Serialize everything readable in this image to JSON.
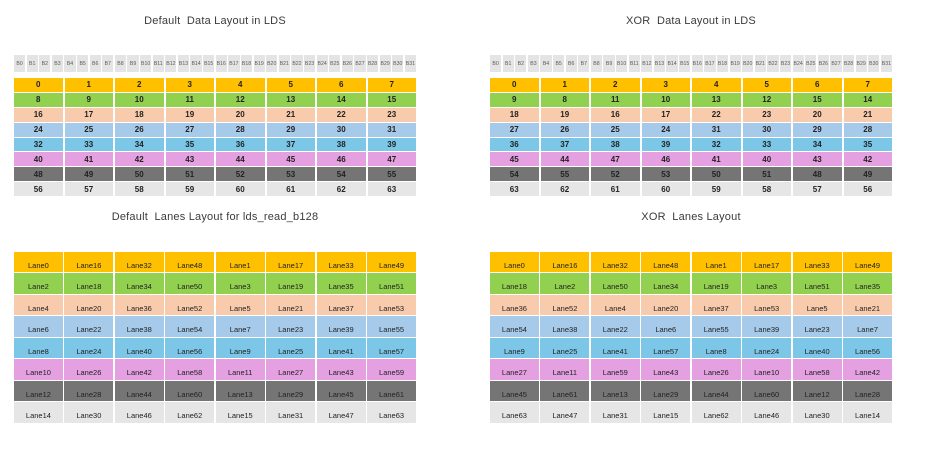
{
  "palette": {
    "row_colors": [
      "#FFC000",
      "#92D050",
      "#F8CBAD",
      "#A6CAEA",
      "#7CC7E8",
      "#E4A0E0",
      "#757575",
      "#E7E6E6"
    ],
    "bank_cell_bg": "#E4E4E4",
    "bank_text": "#5A5A5A",
    "cell_text": "#222222",
    "title_text": "#3B3B3B",
    "background": "#FFFFFF"
  },
  "banks": [
    "B0",
    "B1",
    "B2",
    "B3",
    "B4",
    "B5",
    "B6",
    "B7",
    "B8",
    "B9",
    "B10",
    "B11",
    "B12",
    "B13",
    "B14",
    "B15",
    "B16",
    "B17",
    "B18",
    "B19",
    "B20",
    "B21",
    "B22",
    "B23",
    "B24",
    "B25",
    "B26",
    "B27",
    "B28",
    "B29",
    "B30",
    "B31"
  ],
  "panels": [
    {
      "id": "default-data",
      "title": "Default  Data Layout in LDS",
      "cell_kind": "data",
      "has_banks": true,
      "rows": [
        [
          0,
          1,
          2,
          3,
          4,
          5,
          6,
          7
        ],
        [
          8,
          9,
          10,
          11,
          12,
          13,
          14,
          15
        ],
        [
          16,
          17,
          18,
          19,
          20,
          21,
          22,
          23
        ],
        [
          24,
          25,
          26,
          27,
          28,
          29,
          30,
          31
        ],
        [
          32,
          33,
          34,
          35,
          36,
          37,
          38,
          39
        ],
        [
          40,
          41,
          42,
          43,
          44,
          45,
          46,
          47
        ],
        [
          48,
          49,
          50,
          51,
          52,
          53,
          54,
          55
        ],
        [
          56,
          57,
          58,
          59,
          60,
          61,
          62,
          63
        ]
      ]
    },
    {
      "id": "xor-data",
      "title": "XOR  Data Layout in LDS",
      "cell_kind": "data",
      "has_banks": true,
      "rows": [
        [
          0,
          1,
          2,
          3,
          4,
          5,
          6,
          7
        ],
        [
          9,
          8,
          11,
          10,
          13,
          12,
          15,
          14
        ],
        [
          18,
          19,
          16,
          17,
          22,
          23,
          20,
          21
        ],
        [
          27,
          26,
          25,
          24,
          31,
          30,
          29,
          28
        ],
        [
          36,
          37,
          38,
          39,
          32,
          33,
          34,
          35
        ],
        [
          45,
          44,
          47,
          46,
          41,
          40,
          43,
          42
        ],
        [
          54,
          55,
          52,
          53,
          50,
          51,
          48,
          49
        ],
        [
          63,
          62,
          61,
          60,
          59,
          58,
          57,
          56
        ]
      ]
    },
    {
      "id": "default-lanes",
      "title": "Default  Lanes Layout for lds_read_b128",
      "cell_kind": "lane",
      "has_banks": false,
      "rows": [
        [
          "Lane0",
          "Lane16",
          "Lane32",
          "Lane48",
          "Lane1",
          "Lane17",
          "Lane33",
          "Lane49"
        ],
        [
          "Lane2",
          "Lane18",
          "Lane34",
          "Lane50",
          "Lane3",
          "Lane19",
          "Lane35",
          "Lane51"
        ],
        [
          "Lane4",
          "Lane20",
          "Lane36",
          "Lane52",
          "Lane5",
          "Lane21",
          "Lane37",
          "Lane53"
        ],
        [
          "Lane6",
          "Lane22",
          "Lane38",
          "Lane54",
          "Lane7",
          "Lane23",
          "Lane39",
          "Lane55"
        ],
        [
          "Lane8",
          "Lane24",
          "Lane40",
          "Lane56",
          "Lane9",
          "Lane25",
          "Lane41",
          "Lane57"
        ],
        [
          "Lane10",
          "Lane26",
          "Lane42",
          "Lane58",
          "Lane11",
          "Lane27",
          "Lane43",
          "Lane59"
        ],
        [
          "Lane12",
          "Lane28",
          "Lane44",
          "Lane60",
          "Lane13",
          "Lane29",
          "Lane45",
          "Lane61"
        ],
        [
          "Lane14",
          "Lane30",
          "Lane46",
          "Lane62",
          "Lane15",
          "Lane31",
          "Lane47",
          "Lane63"
        ]
      ]
    },
    {
      "id": "xor-lanes",
      "title": "XOR  Lanes Layout",
      "cell_kind": "lane",
      "has_banks": false,
      "rows": [
        [
          "Lane0",
          "Lane16",
          "Lane32",
          "Lane48",
          "Lane1",
          "Lane17",
          "Lane33",
          "Lane49"
        ],
        [
          "Lane18",
          "Lane2",
          "Lane50",
          "Lane34",
          "Lane19",
          "Lane3",
          "Lane51",
          "Lane35"
        ],
        [
          "Lane36",
          "Lane52",
          "Lane4",
          "Lane20",
          "Lane37",
          "Lane53",
          "Lane5",
          "Lane21"
        ],
        [
          "Lane54",
          "Lane38",
          "Lane22",
          "Lane6",
          "Lane55",
          "Lane39",
          "Lane23",
          "Lane7"
        ],
        [
          "Lane9",
          "Lane25",
          "Lane41",
          "Lane57",
          "Lane8",
          "Lane24",
          "Lane40",
          "Lane56"
        ],
        [
          "Lane27",
          "Lane11",
          "Lane59",
          "Lane43",
          "Lane26",
          "Lane10",
          "Lane58",
          "Lane42"
        ],
        [
          "Lane45",
          "Lane61",
          "Lane13",
          "Lane29",
          "Lane44",
          "Lane60",
          "Lane12",
          "Lane28"
        ],
        [
          "Lane63",
          "Lane47",
          "Lane31",
          "Lane15",
          "Lane62",
          "Lane46",
          "Lane30",
          "Lane14"
        ]
      ]
    }
  ]
}
